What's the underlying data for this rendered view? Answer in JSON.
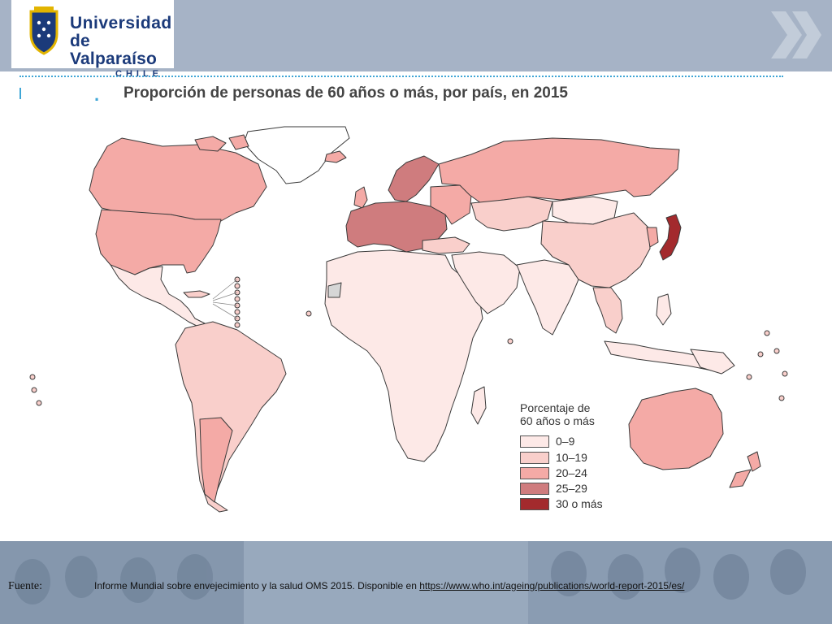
{
  "header": {
    "logo_line1": "Universidad",
    "logo_line2": "de Valparaíso",
    "logo_line3": "CHILE"
  },
  "slide": {
    "title_marker": ".",
    "title": "Proporción de personas de 60 años o más, por país, en 2015"
  },
  "legend": {
    "title_line1": "Porcentaje de",
    "title_line2": "60 años o más",
    "items": [
      {
        "label": "0–9",
        "color": "#fde9e7"
      },
      {
        "label": "10–19",
        "color": "#f9cfcb"
      },
      {
        "label": "20–24",
        "color": "#f4aaa6"
      },
      {
        "label": "25–29",
        "color": "#cf7c7e"
      },
      {
        "label": "30 o más",
        "color": "#a32a2d"
      }
    ]
  },
  "footer": {
    "fuente_label": "Fuente:",
    "source_text": "Informe Mundial sobre envejecimiento y la salud OMS 2015. Disponible en ",
    "source_link": "https://www.who.int/ageing/publications/world-report-2015/es/"
  },
  "colors": {
    "header_bg": "#a6b3c6",
    "accent": "#3fa6d6",
    "brand": "#1b3a7a"
  }
}
